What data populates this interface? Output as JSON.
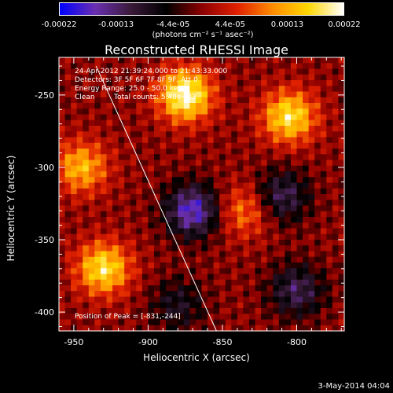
{
  "colorbar": {
    "ticks": [
      "-0.00022",
      "-0.00013",
      "-4.4e-05",
      "4.4e-05",
      "0.00013",
      "0.00022"
    ],
    "unit_label": "(photons cm⁻² s⁻¹ asec⁻²)",
    "range": [
      -0.00022,
      0.00022
    ],
    "colormap": [
      "#0000ff",
      "#6a2fb0",
      "#3a1a3a",
      "#000000",
      "#8b0000",
      "#e02000",
      "#ff8c00",
      "#ffd700",
      "#ffffff"
    ]
  },
  "title": "Reconstructed RHESSI Image",
  "annotations": {
    "time_range": "24-Apr-2012 21:39:24.000 to 21:43:33.000",
    "detectors": "Detectors: 3F 5F 6F 7F 8F 9F, Att 0",
    "energy": "Energy Range: 25.0 - 50.0 keV",
    "algorithm": "Clean",
    "total_counts": "Total counts: 5.48e+03",
    "peak": "Position of Peak = [-831,-244]"
  },
  "date_stamp": "3-May-2014 04:04",
  "chart_data": {
    "type": "heatmap",
    "title": "Reconstructed RHESSI Image",
    "xlabel": "Heliocentric X (arcsec)",
    "ylabel": "Heliocentric Y (arcsec)",
    "xlim": [
      -960,
      -768
    ],
    "ylim": [
      -413,
      -224
    ],
    "x_ticks": [
      -950,
      -900,
      -850,
      -800
    ],
    "y_ticks": [
      -250,
      -300,
      -350,
      -400
    ],
    "x_tick_labels": [
      "-950",
      "-900",
      "-850",
      "-800"
    ],
    "y_tick_labels": [
      "-250",
      "-300",
      "-350",
      "-400"
    ],
    "limb_line": {
      "x": [
        -935,
        -854
      ],
      "y": [
        -230,
        -413
      ]
    },
    "regions": [
      {
        "name": "top bright",
        "x": -875,
        "y": -250,
        "value": 0.00022
      },
      {
        "name": "upper-right bright",
        "x": -805,
        "y": -265,
        "value": 0.00018
      },
      {
        "name": "lower-left bright",
        "x": -930,
        "y": -370,
        "value": 0.00018
      },
      {
        "name": "left bright",
        "x": -945,
        "y": -300,
        "value": 0.00014
      },
      {
        "name": "middle-right orange",
        "x": -835,
        "y": -330,
        "value": 0.0001
      },
      {
        "name": "center negative",
        "x": -870,
        "y": -330,
        "value": -0.00018
      },
      {
        "name": "right negative",
        "x": -810,
        "y": -320,
        "value": -0.00012
      },
      {
        "name": "lower-right negative",
        "x": -800,
        "y": -385,
        "value": -0.00012
      },
      {
        "name": "bottom-center negative",
        "x": -880,
        "y": -395,
        "value": -8e-05
      }
    ]
  }
}
